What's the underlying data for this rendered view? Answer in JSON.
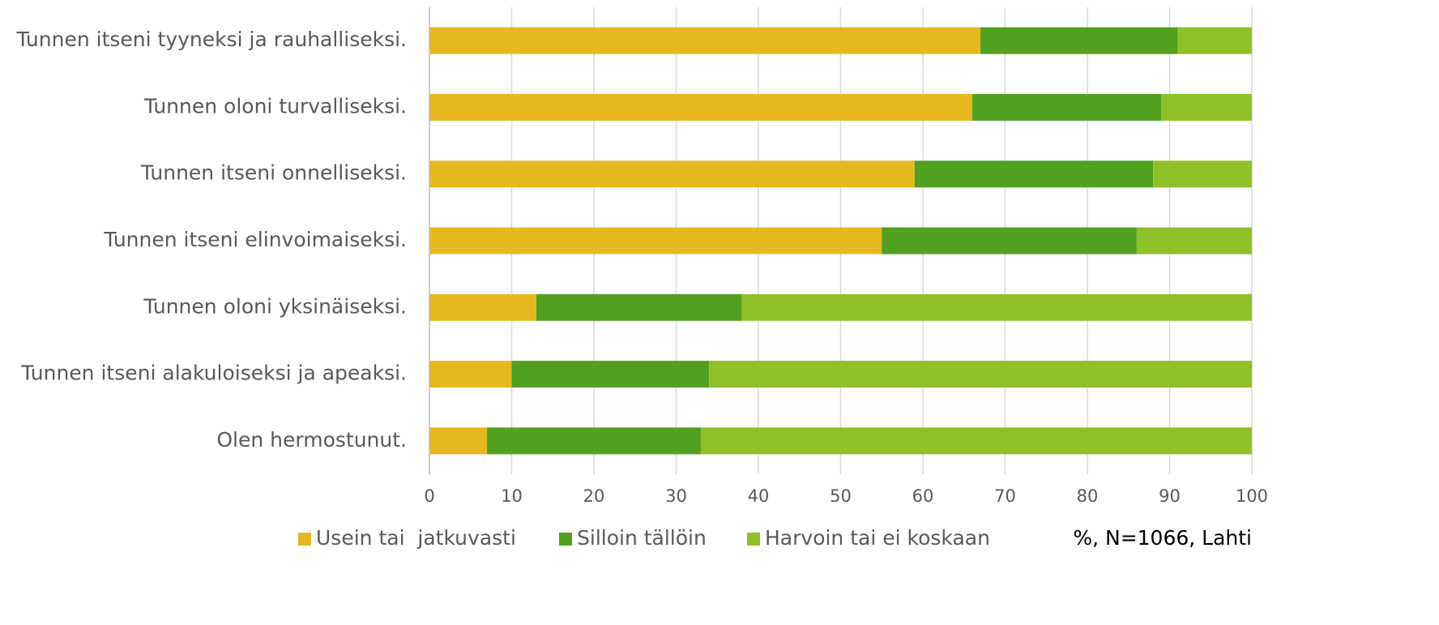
{
  "chart_data": {
    "type": "stacked_barh",
    "categories": [
      "Tunnen itseni tyyneksi ja rauhalliseksi.",
      "Tunnen oloni turvalliseksi.",
      "Tunnen itseni onnelliseksi.",
      "Tunnen itseni elinvoimaiseksi.",
      "Tunnen oloni yksinäiseksi.",
      "Tunnen itseni alakuloiseksi ja apeaksi.",
      "Olen hermostunut."
    ],
    "series": [
      {
        "name": "Usein tai  jatkuvasti",
        "color": "#e6b820",
        "values": [
          67,
          66,
          59,
          55,
          13,
          10,
          7
        ]
      },
      {
        "name": "Silloin tällöin",
        "color": "#52a020",
        "values": [
          24,
          23,
          29,
          31,
          25,
          24,
          26
        ]
      },
      {
        "name": "Harvoin tai ei koskaan",
        "color": "#8fc028",
        "values": [
          9,
          11,
          12,
          14,
          62,
          66,
          67
        ]
      }
    ],
    "xlim": [
      0,
      100
    ],
    "xticks": [
      0,
      10,
      20,
      30,
      40,
      50,
      60,
      70,
      80,
      90,
      100
    ],
    "grid": true,
    "legend": "bottom",
    "annotation": "%, N=1066, Lahti"
  }
}
